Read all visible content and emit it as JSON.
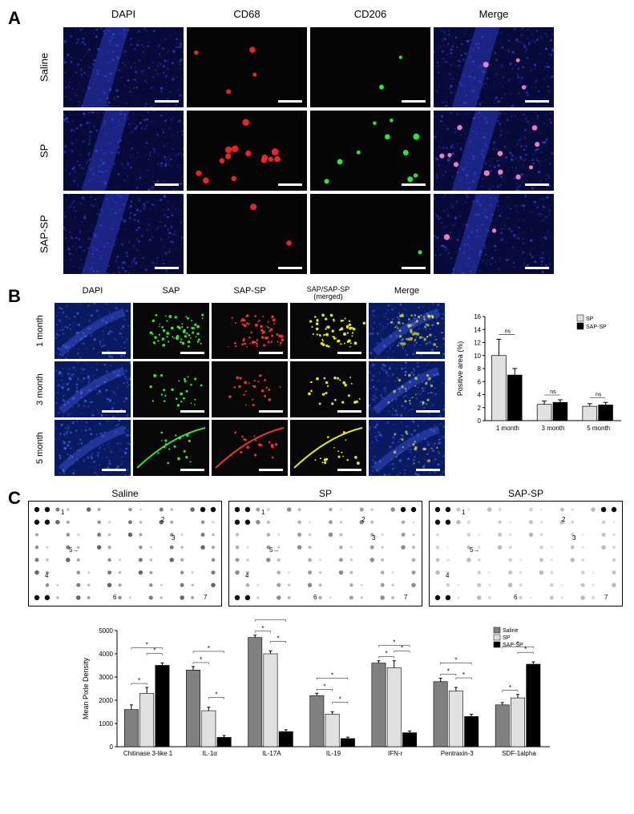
{
  "panelA": {
    "label": "A",
    "columns": [
      "DAPI",
      "CD68",
      "CD206",
      "Merge"
    ],
    "rows": [
      "Saline",
      "SP",
      "SAP-SP"
    ],
    "colors": {
      "dapi_bg": "#080a3a",
      "dapi_bright": "#3a4af0",
      "dark": "#050505",
      "cd68": "#ff2a2a",
      "cd206": "#2aff4a",
      "merge_pink": "#ff8ad0"
    },
    "dot_counts": {
      "saline_cd68": 4,
      "saline_cd206": 2,
      "sp_cd68": 14,
      "sp_cd206": 10,
      "sapsp_cd68": 2,
      "sapsp_cd206": 1
    }
  },
  "panelB": {
    "label": "B",
    "columns": [
      "DAPI",
      "SAP",
      "SAP-SP",
      "SAP/SAP-SP\n(merged)",
      "Merge"
    ],
    "top_label": "SAP/SAP-SP (merged)",
    "rows": [
      "1 month",
      "3 month",
      "5 month"
    ],
    "colors": {
      "dapi_bg": "#0a1a60",
      "dapi_bright": "#4a6aff",
      "dark": "#070707",
      "sap": "#3aff3a",
      "sapsp": "#ff3a3a",
      "merged": "#ffff20"
    },
    "chart": {
      "type": "bar",
      "ylabel": "Positive area (%)",
      "ylim": [
        0,
        16
      ],
      "yticks": [
        0,
        2,
        4,
        6,
        8,
        10,
        12,
        14,
        16
      ],
      "categories": [
        "1 month",
        "3 month",
        "5 month"
      ],
      "series": [
        {
          "name": "SP",
          "color": "#e0e0e0",
          "values": [
            10,
            2.5,
            2.2
          ],
          "errors": [
            2.5,
            0.5,
            0.4
          ]
        },
        {
          "name": "SAP-SP",
          "color": "#000000",
          "values": [
            7,
            2.8,
            2.4
          ],
          "errors": [
            1,
            0.4,
            0.4
          ]
        }
      ],
      "annotations": [
        "ns",
        "ns",
        "ns"
      ],
      "label_fontsize": 9,
      "tick_fontsize": 8,
      "bar_width": 0.35
    }
  },
  "panelC": {
    "label": "C",
    "array_titles": [
      "Saline",
      "SP",
      "SAP-SP"
    ],
    "array_annotations": [
      "1",
      "2",
      "3",
      "4",
      "5→",
      "6",
      "7"
    ],
    "dot_intensity": {
      "Saline": 1.0,
      "SP": 0.75,
      "SAP-SP": 0.45
    },
    "chart": {
      "type": "bar",
      "ylabel": "Mean Pixle Density",
      "ylim": [
        0,
        5000
      ],
      "yticks": [
        0,
        1000,
        2000,
        3000,
        4000,
        5000
      ],
      "categories": [
        "Chitinase 3-like 1",
        "IL-1α",
        "IL-17A",
        "IL-19",
        "IFN-r",
        "Pentraxin-3",
        "SDF-1alpha"
      ],
      "series": [
        {
          "name": "Saline",
          "color": "#808080",
          "values": [
            1600,
            3300,
            4700,
            2200,
            3600,
            2800,
            1800
          ],
          "errors": [
            200,
            150,
            100,
            100,
            100,
            150,
            100
          ]
        },
        {
          "name": "SP",
          "color": "#e0e0e0",
          "values": [
            2300,
            1550,
            4000,
            1400,
            3400,
            2400,
            2100
          ],
          "errors": [
            250,
            150,
            120,
            100,
            300,
            150,
            150
          ]
        },
        {
          "name": "SAP-SP",
          "color": "#000000",
          "values": [
            3500,
            400,
            650,
            350,
            600,
            1300,
            3550
          ],
          "errors": [
            100,
            80,
            80,
            60,
            80,
            100,
            100
          ]
        }
      ],
      "sig_marker": "*",
      "label_fontsize": 9,
      "tick_fontsize": 8,
      "bar_width": 0.25
    }
  }
}
